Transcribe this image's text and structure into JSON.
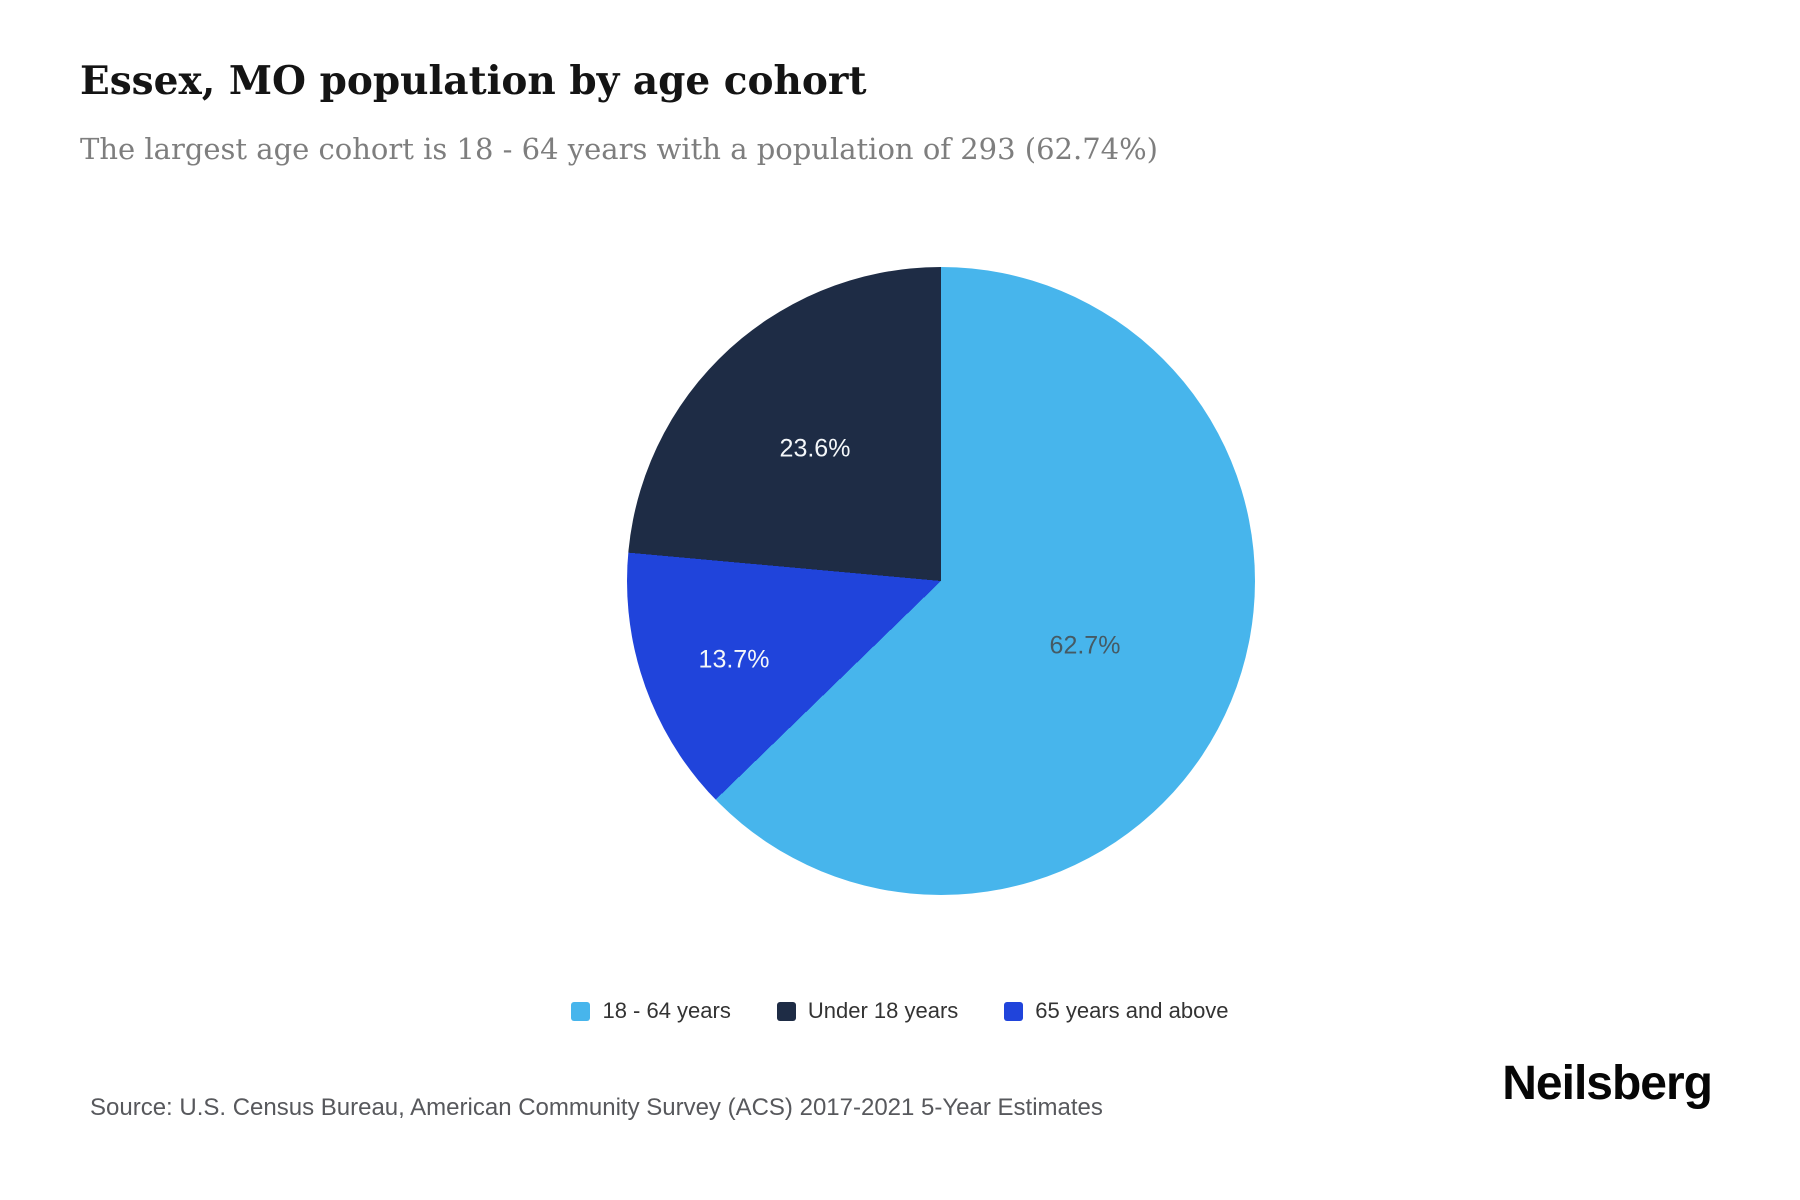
{
  "header": {
    "title": "Essex, MO population by age cohort",
    "subtitle": "The largest age cohort is 18 - 64 years with a population of 293 (62.74%)"
  },
  "chart_data": {
    "type": "pie",
    "title": "Essex, MO population by age cohort",
    "direction": "clockwise",
    "start_angle_deg": 0,
    "slices": [
      {
        "label": "18 - 64 years",
        "value_pct": 62.7,
        "display": "62.7%",
        "color": "#47B5EC",
        "start_deg": 0,
        "end_deg": 225.86
      },
      {
        "label": "65 years and above",
        "value_pct": 13.7,
        "display": "13.7%",
        "color": "#2044DB",
        "start_deg": 225.86,
        "end_deg": 275.18
      },
      {
        "label": "Under 18 years",
        "value_pct": 23.6,
        "display": "23.6%",
        "color": "#1E2C45",
        "start_deg": 275.18,
        "end_deg": 360
      }
    ],
    "highlight": {
      "largest_cohort": "18 - 64 years",
      "population": 293,
      "share_pct": 62.74
    }
  },
  "legend": {
    "items": [
      {
        "label": "18 - 64 years",
        "color": "#47B5EC"
      },
      {
        "label": "Under 18 years",
        "color": "#1E2C45"
      },
      {
        "label": "65 years and above",
        "color": "#2044DB"
      }
    ]
  },
  "footer": {
    "source": "Source: U.S. Census Bureau, American Community Survey (ACS) 2017-2021 5-Year Estimates",
    "brand": "Neilsberg"
  }
}
